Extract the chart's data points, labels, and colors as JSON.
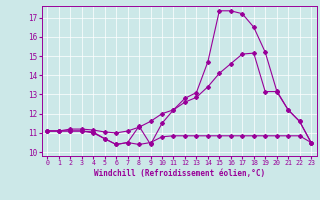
{
  "xlabel": "Windchill (Refroidissement éolien,°C)",
  "background_color": "#cce8e8",
  "line_color": "#990099",
  "xlim": [
    -0.5,
    23.5
  ],
  "ylim": [
    9.8,
    17.6
  ],
  "yticks": [
    10,
    11,
    12,
    13,
    14,
    15,
    16,
    17
  ],
  "xticks": [
    0,
    1,
    2,
    3,
    4,
    5,
    6,
    7,
    8,
    9,
    10,
    11,
    12,
    13,
    14,
    15,
    16,
    17,
    18,
    19,
    20,
    21,
    22,
    23
  ],
  "line1_x": [
    0,
    1,
    2,
    3,
    4,
    5,
    6,
    7,
    8,
    9,
    10,
    11,
    12,
    13,
    14,
    15,
    16,
    17,
    18,
    19,
    20,
    21,
    22,
    23
  ],
  "line1_y": [
    11.1,
    11.1,
    11.1,
    11.1,
    11.0,
    10.7,
    10.4,
    10.5,
    11.35,
    10.4,
    11.5,
    12.2,
    12.8,
    13.1,
    14.7,
    17.35,
    17.35,
    17.2,
    16.5,
    15.2,
    13.2,
    12.2,
    11.6,
    10.5
  ],
  "line2_x": [
    0,
    1,
    2,
    3,
    4,
    5,
    6,
    7,
    8,
    9,
    10,
    11,
    12,
    13,
    14,
    15,
    16,
    17,
    18,
    19,
    20,
    21,
    22,
    23
  ],
  "line2_y": [
    11.1,
    11.1,
    11.1,
    11.1,
    11.05,
    10.7,
    10.4,
    10.5,
    10.4,
    10.5,
    10.8,
    10.85,
    10.85,
    10.85,
    10.85,
    10.85,
    10.85,
    10.85,
    10.85,
    10.85,
    10.85,
    10.85,
    10.85,
    10.5
  ],
  "line3_x": [
    0,
    1,
    2,
    3,
    4,
    5,
    6,
    7,
    8,
    9,
    10,
    11,
    12,
    13,
    14,
    15,
    16,
    17,
    18,
    19,
    20,
    21,
    22,
    23
  ],
  "line3_y": [
    11.1,
    11.1,
    11.2,
    11.2,
    11.15,
    11.05,
    11.0,
    11.1,
    11.3,
    11.6,
    12.0,
    12.2,
    12.6,
    12.85,
    13.4,
    14.1,
    14.6,
    15.1,
    15.15,
    13.15,
    13.15,
    12.2,
    11.6,
    10.5
  ]
}
